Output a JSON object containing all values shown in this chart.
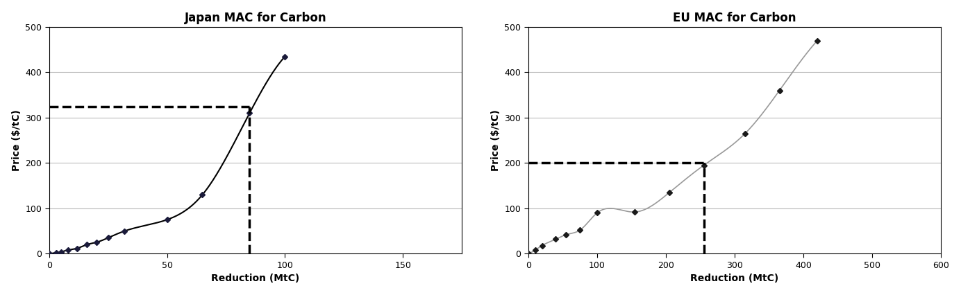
{
  "japan": {
    "title": "Japan MAC for Carbon",
    "xlabel": "Reduction (MtC)",
    "ylabel": "Price ($/tC)",
    "xlim": [
      0,
      175
    ],
    "ylim": [
      0,
      500
    ],
    "xticks": [
      0,
      50,
      100,
      150
    ],
    "yticks": [
      0,
      100,
      200,
      300,
      400,
      500
    ],
    "curve_x": [
      0,
      3,
      5,
      8,
      12,
      16,
      20,
      25,
      32,
      50,
      65,
      85,
      100
    ],
    "curve_y": [
      0,
      2,
      4,
      8,
      12,
      20,
      25,
      35,
      50,
      75,
      130,
      310,
      435
    ],
    "dashed_x": 85,
    "dashed_y": 325,
    "line_color": "#000000",
    "marker_color": "#1a1a3a",
    "dashed_color": "#000000",
    "line_width": 1.5
  },
  "eu": {
    "title": "EU MAC for Carbon",
    "xlabel": "Reduction (MtC)",
    "ylabel": "Price ($/tC)",
    "xlim": [
      0,
      600
    ],
    "ylim": [
      0,
      500
    ],
    "xticks": [
      0,
      100,
      200,
      300,
      400,
      500,
      600
    ],
    "yticks": [
      0,
      100,
      200,
      300,
      400,
      500
    ],
    "curve_x": [
      0,
      10,
      20,
      40,
      55,
      75,
      100,
      155,
      205,
      255,
      315,
      365,
      420
    ],
    "curve_y": [
      0,
      8,
      18,
      32,
      42,
      52,
      90,
      92,
      135,
      195,
      265,
      360,
      470
    ],
    "dashed_x": 255,
    "dashed_y": 200,
    "line_color": "#999999",
    "marker_color": "#1a1a1a",
    "dashed_color": "#000000",
    "line_width": 1.2
  },
  "bg_color": "#ffffff",
  "title_fontsize": 12,
  "label_fontsize": 10,
  "tick_fontsize": 9,
  "grid_color": "#bbbbbb",
  "grid_lw": 0.8
}
